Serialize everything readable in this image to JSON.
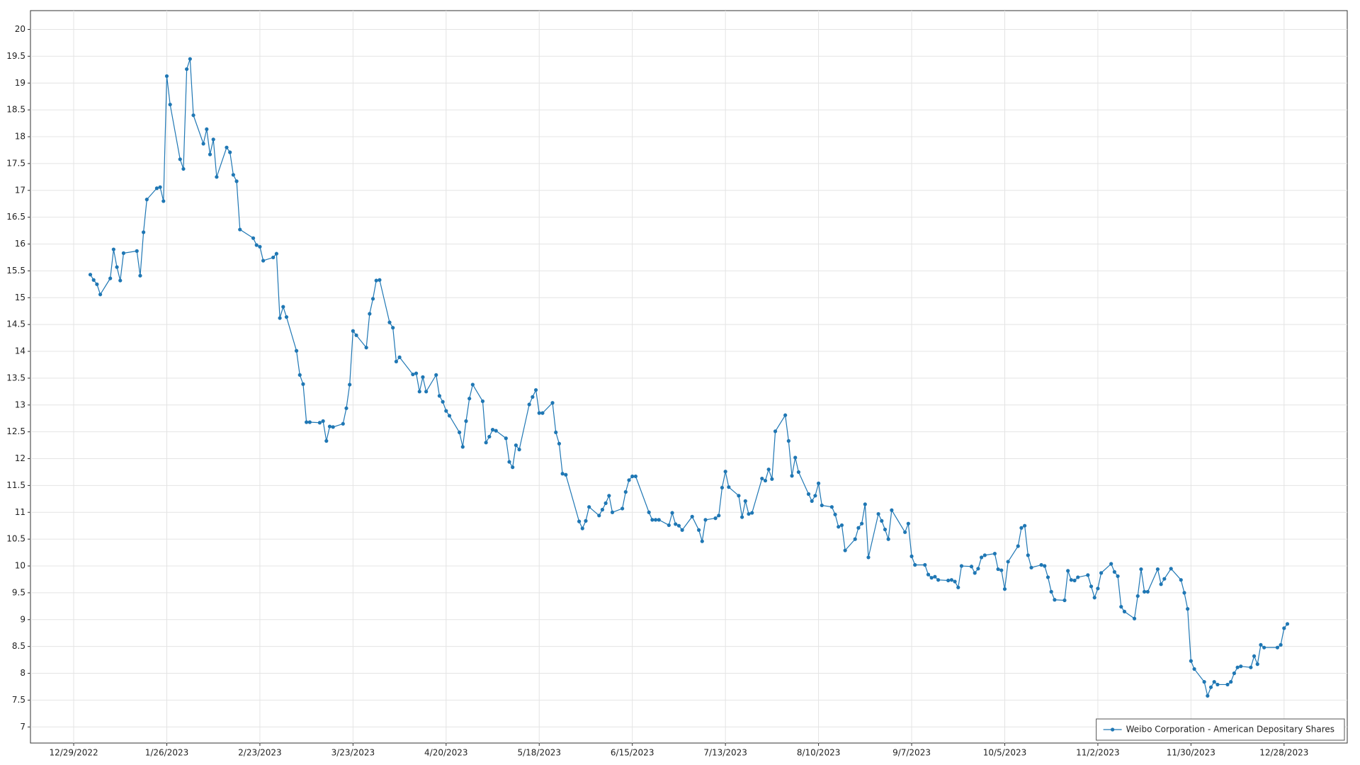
{
  "chart_data": {
    "type": "line",
    "x": [
      "1/3/2023",
      "1/4/2023",
      "1/5/2023",
      "1/6/2023",
      "1/9/2023",
      "1/10/2023",
      "1/11/2023",
      "1/12/2023",
      "1/13/2023",
      "1/17/2023",
      "1/18/2023",
      "1/19/2023",
      "1/20/2023",
      "1/23/2023",
      "1/24/2023",
      "1/25/2023",
      "1/26/2023",
      "1/27/2023",
      "1/30/2023",
      "1/31/2023",
      "2/1/2023",
      "2/2/2023",
      "2/3/2023",
      "2/6/2023",
      "2/7/2023",
      "2/8/2023",
      "2/9/2023",
      "2/10/2023",
      "2/13/2023",
      "2/14/2023",
      "2/15/2023",
      "2/16/2023",
      "2/17/2023",
      "2/21/2023",
      "2/22/2023",
      "2/23/2023",
      "2/24/2023",
      "2/27/2023",
      "2/28/2023",
      "3/1/2023",
      "3/2/2023",
      "3/3/2023",
      "3/6/2023",
      "3/7/2023",
      "3/8/2023",
      "3/9/2023",
      "3/10/2023",
      "3/13/2023",
      "3/14/2023",
      "3/15/2023",
      "3/16/2023",
      "3/17/2023",
      "3/20/2023",
      "3/21/2023",
      "3/22/2023",
      "3/23/2023",
      "3/24/2023",
      "3/27/2023",
      "3/28/2023",
      "3/29/2023",
      "3/30/2023",
      "3/31/2023",
      "4/3/2023",
      "4/4/2023",
      "4/5/2023",
      "4/6/2023",
      "4/10/2023",
      "4/11/2023",
      "4/12/2023",
      "4/13/2023",
      "4/14/2023",
      "4/17/2023",
      "4/18/2023",
      "4/19/2023",
      "4/20/2023",
      "4/21/2023",
      "4/24/2023",
      "4/25/2023",
      "4/26/2023",
      "4/27/2023",
      "4/28/2023",
      "5/1/2023",
      "5/2/2023",
      "5/3/2023",
      "5/4/2023",
      "5/5/2023",
      "5/8/2023",
      "5/9/2023",
      "5/10/2023",
      "5/11/2023",
      "5/12/2023",
      "5/15/2023",
      "5/16/2023",
      "5/17/2023",
      "5/18/2023",
      "5/19/2023",
      "5/22/2023",
      "5/23/2023",
      "5/24/2023",
      "5/25/2023",
      "5/26/2023",
      "5/30/2023",
      "5/31/2023",
      "6/1/2023",
      "6/2/2023",
      "6/5/2023",
      "6/6/2023",
      "6/7/2023",
      "6/8/2023",
      "6/9/2023",
      "6/12/2023",
      "6/13/2023",
      "6/14/2023",
      "6/15/2023",
      "6/16/2023",
      "6/20/2023",
      "6/21/2023",
      "6/22/2023",
      "6/23/2023",
      "6/26/2023",
      "6/27/2023",
      "6/28/2023",
      "6/29/2023",
      "6/30/2023",
      "7/3/2023",
      "7/5/2023",
      "7/6/2023",
      "7/7/2023",
      "7/10/2023",
      "7/11/2023",
      "7/12/2023",
      "7/13/2023",
      "7/14/2023",
      "7/17/2023",
      "7/18/2023",
      "7/19/2023",
      "7/20/2023",
      "7/21/2023",
      "7/24/2023",
      "7/25/2023",
      "7/26/2023",
      "7/27/2023",
      "7/28/2023",
      "7/31/2023",
      "8/1/2023",
      "8/2/2023",
      "8/3/2023",
      "8/4/2023",
      "8/7/2023",
      "8/8/2023",
      "8/9/2023",
      "8/10/2023",
      "8/11/2023",
      "8/14/2023",
      "8/15/2023",
      "8/16/2023",
      "8/17/2023",
      "8/18/2023",
      "8/21/2023",
      "8/22/2023",
      "8/23/2023",
      "8/24/2023",
      "8/25/2023",
      "8/28/2023",
      "8/29/2023",
      "8/30/2023",
      "8/31/2023",
      "9/1/2023",
      "9/5/2023",
      "9/6/2023",
      "9/7/2023",
      "9/8/2023",
      "9/11/2023",
      "9/12/2023",
      "9/13/2023",
      "9/14/2023",
      "9/15/2023",
      "9/18/2023",
      "9/19/2023",
      "9/20/2023",
      "9/21/2023",
      "9/22/2023",
      "9/25/2023",
      "9/26/2023",
      "9/27/2023",
      "9/28/2023",
      "9/29/2023",
      "10/2/2023",
      "10/3/2023",
      "10/4/2023",
      "10/5/2023",
      "10/6/2023",
      "10/9/2023",
      "10/10/2023",
      "10/11/2023",
      "10/12/2023",
      "10/13/2023",
      "10/16/2023",
      "10/17/2023",
      "10/18/2023",
      "10/19/2023",
      "10/20/2023",
      "10/23/2023",
      "10/24/2023",
      "10/25/2023",
      "10/26/2023",
      "10/27/2023",
      "10/30/2023",
      "10/31/2023",
      "11/1/2023",
      "11/2/2023",
      "11/3/2023",
      "11/6/2023",
      "11/7/2023",
      "11/8/2023",
      "11/9/2023",
      "11/10/2023",
      "11/13/2023",
      "11/14/2023",
      "11/15/2023",
      "11/16/2023",
      "11/17/2023",
      "11/20/2023",
      "11/21/2023",
      "11/22/2023",
      "11/24/2023",
      "11/27/2023",
      "11/28/2023",
      "11/29/2023",
      "11/30/2023",
      "12/1/2023",
      "12/4/2023",
      "12/5/2023",
      "12/6/2023",
      "12/7/2023",
      "12/8/2023",
      "12/11/2023",
      "12/12/2023",
      "12/13/2023",
      "12/14/2023",
      "12/15/2023",
      "12/18/2023",
      "12/19/2023",
      "12/20/2023",
      "12/21/2023",
      "12/22/2023",
      "12/26/2023",
      "12/27/2023",
      "12/28/2023",
      "12/29/2023"
    ],
    "series": [
      {
        "name": "Weibo Corporation - American Depositary Shares",
        "color": "#1f77b4",
        "values": [
          15.43,
          15.33,
          15.25,
          15.06,
          15.36,
          15.9,
          15.57,
          15.32,
          15.83,
          15.87,
          15.41,
          16.22,
          16.83,
          17.04,
          17.06,
          16.8,
          19.13,
          18.6,
          17.58,
          17.4,
          19.26,
          19.45,
          18.4,
          17.87,
          18.14,
          17.67,
          17.95,
          17.25,
          17.8,
          17.71,
          17.29,
          17.17,
          16.27,
          16.11,
          15.98,
          15.95,
          15.69,
          15.75,
          15.82,
          14.62,
          14.83,
          14.64,
          14.01,
          13.56,
          13.39,
          12.68,
          12.68,
          12.67,
          12.7,
          12.33,
          12.6,
          12.59,
          12.65,
          12.94,
          13.38,
          14.38,
          14.3,
          14.07,
          14.7,
          14.98,
          15.32,
          15.33,
          14.54,
          14.44,
          13.81,
          13.89,
          13.57,
          13.59,
          13.25,
          13.52,
          13.25,
          13.56,
          13.17,
          13.06,
          12.89,
          12.8,
          12.49,
          12.22,
          12.7,
          13.12,
          13.38,
          13.07,
          12.3,
          12.41,
          12.54,
          12.52,
          12.38,
          11.94,
          11.84,
          12.25,
          12.17,
          13.01,
          13.15,
          13.28,
          12.85,
          12.85,
          13.04,
          12.49,
          12.28,
          11.72,
          11.7,
          10.83,
          10.7,
          10.84,
          11.1,
          10.94,
          11.05,
          11.17,
          11.31,
          11.0,
          11.07,
          11.38,
          11.6,
          11.67,
          11.67,
          11.0,
          10.86,
          10.86,
          10.86,
          10.76,
          10.99,
          10.78,
          10.75,
          10.67,
          10.92,
          10.67,
          10.46,
          10.86,
          10.89,
          10.94,
          11.46,
          11.76,
          11.47,
          11.31,
          10.91,
          11.21,
          10.97,
          10.99,
          11.63,
          11.59,
          11.8,
          11.62,
          12.51,
          12.81,
          12.33,
          11.68,
          12.02,
          11.75,
          11.34,
          11.21,
          11.31,
          11.54,
          11.13,
          11.1,
          10.96,
          10.73,
          10.76,
          10.29,
          10.5,
          10.71,
          10.79,
          11.15,
          10.16,
          10.97,
          10.84,
          10.68,
          10.5,
          11.04,
          10.63,
          10.79,
          10.18,
          10.02,
          10.02,
          9.84,
          9.78,
          9.8,
          9.74,
          9.73,
          9.74,
          9.71,
          9.6,
          10.0,
          9.99,
          9.87,
          9.95,
          10.16,
          10.2,
          10.23,
          9.94,
          9.92,
          9.57,
          10.08,
          10.37,
          10.71,
          10.75,
          10.2,
          9.97,
          10.02,
          10.0,
          9.79,
          9.52,
          9.37,
          9.36,
          9.91,
          9.74,
          9.73,
          9.79,
          9.83,
          9.62,
          9.41,
          9.58,
          9.87,
          10.04,
          9.89,
          9.81,
          9.24,
          9.15,
          9.02,
          9.44,
          9.94,
          9.52,
          9.52,
          9.94,
          9.66,
          9.76,
          9.95,
          9.74,
          9.5,
          9.2,
          8.23,
          8.08,
          7.84,
          7.58,
          7.74,
          7.84,
          7.79,
          7.79,
          7.84,
          8.0,
          8.11,
          8.13,
          8.11,
          8.32,
          8.17,
          8.53,
          8.48,
          8.48,
          8.53,
          8.84,
          8.92
        ]
      }
    ],
    "xlim": [
      "12/16/2022",
      "1/16/2024"
    ],
    "xticks": [
      "12/29/2022",
      "1/26/2023",
      "2/23/2023",
      "3/23/2023",
      "4/20/2023",
      "5/18/2023",
      "6/15/2023",
      "7/13/2023",
      "8/10/2023",
      "9/7/2023",
      "10/5/2023",
      "11/2/2023",
      "11/30/2023",
      "12/28/2023"
    ],
    "ylim": [
      6.7,
      20.35
    ],
    "yticks": [
      7,
      7.5,
      8,
      8.5,
      9,
      9.5,
      10,
      10.5,
      11,
      11.5,
      12,
      12.5,
      13,
      13.5,
      14,
      14.5,
      15,
      15.5,
      16,
      16.5,
      17,
      17.5,
      18,
      18.5,
      19,
      19.5,
      20
    ],
    "grid": true,
    "legend": "bottom-right"
  }
}
